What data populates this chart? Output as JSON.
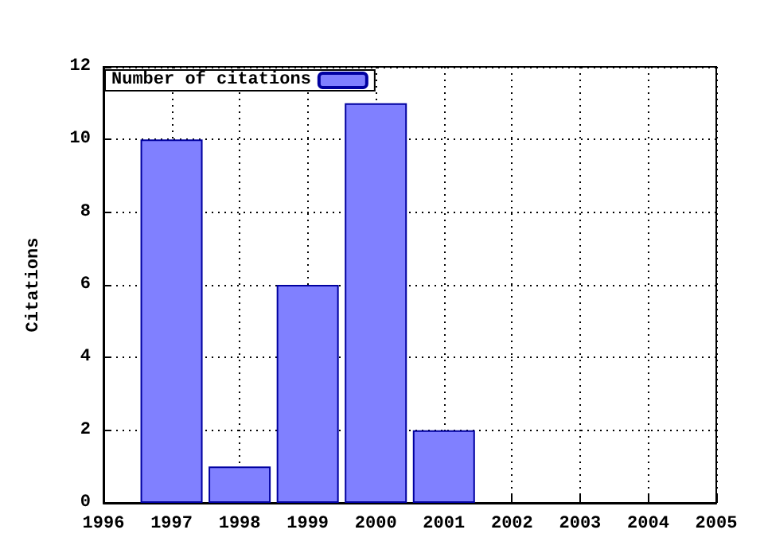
{
  "chart_data": {
    "type": "bar",
    "ylabel": "Citations",
    "x": [
      1997,
      1998,
      1999,
      2000,
      2001
    ],
    "series": [
      {
        "name": "Number of citations",
        "color": "#8080ff",
        "values": [
          10,
          1,
          6,
          11,
          2
        ]
      }
    ],
    "xlim": [
      1996,
      2005
    ],
    "xticks": [
      1996,
      1997,
      1998,
      1999,
      2000,
      2001,
      2002,
      2003,
      2004,
      2005
    ],
    "ylim": [
      0,
      12
    ],
    "yticks": [
      0,
      2,
      4,
      6,
      8,
      10,
      12
    ],
    "grid": true,
    "legend": "top left"
  }
}
